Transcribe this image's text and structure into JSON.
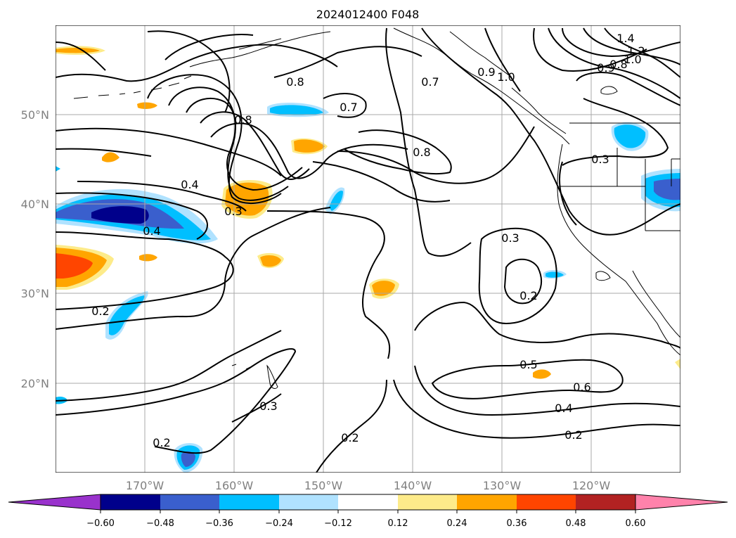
{
  "title": "2024012400 F048",
  "latitude_labels": [
    "50°N",
    "40°N",
    "30°N",
    "20°N"
  ],
  "longitude_labels": [
    "170°W",
    "160°W",
    "150°W",
    "140°W",
    "130°W",
    "120°W"
  ],
  "colorbar": {
    "tick_labels": [
      "−0.60",
      "−0.48",
      "−0.36",
      "−0.24",
      "−0.12",
      "0.12",
      "0.24",
      "0.36",
      "0.48",
      "0.60"
    ],
    "colors": [
      "#9932cc",
      "#00008b",
      "#3a5fcd",
      "#00bfff",
      "#b0e2ff",
      "#ffffff",
      "#fdeb8a",
      "#ffa500",
      "#ff4500",
      "#b22222",
      "#ff82ab"
    ]
  },
  "contour_labels": [
    "1.4",
    "1.2",
    "1.0",
    "0.8",
    "0.9",
    "0.8",
    "0.7",
    "0.9",
    "1.0",
    "0.7",
    "0.8",
    "0.8",
    "0.3",
    "0.4",
    "0.3",
    "0.4",
    "0.3",
    "0.2",
    "0.2",
    "0.5",
    "0.6",
    "0.4",
    "0.2",
    "0.2",
    "0.3",
    "0.2"
  ],
  "colors": {
    "contour": "#000000",
    "grid": "#a9a9a9",
    "coast": "#000000",
    "geo_label": "#808080"
  }
}
